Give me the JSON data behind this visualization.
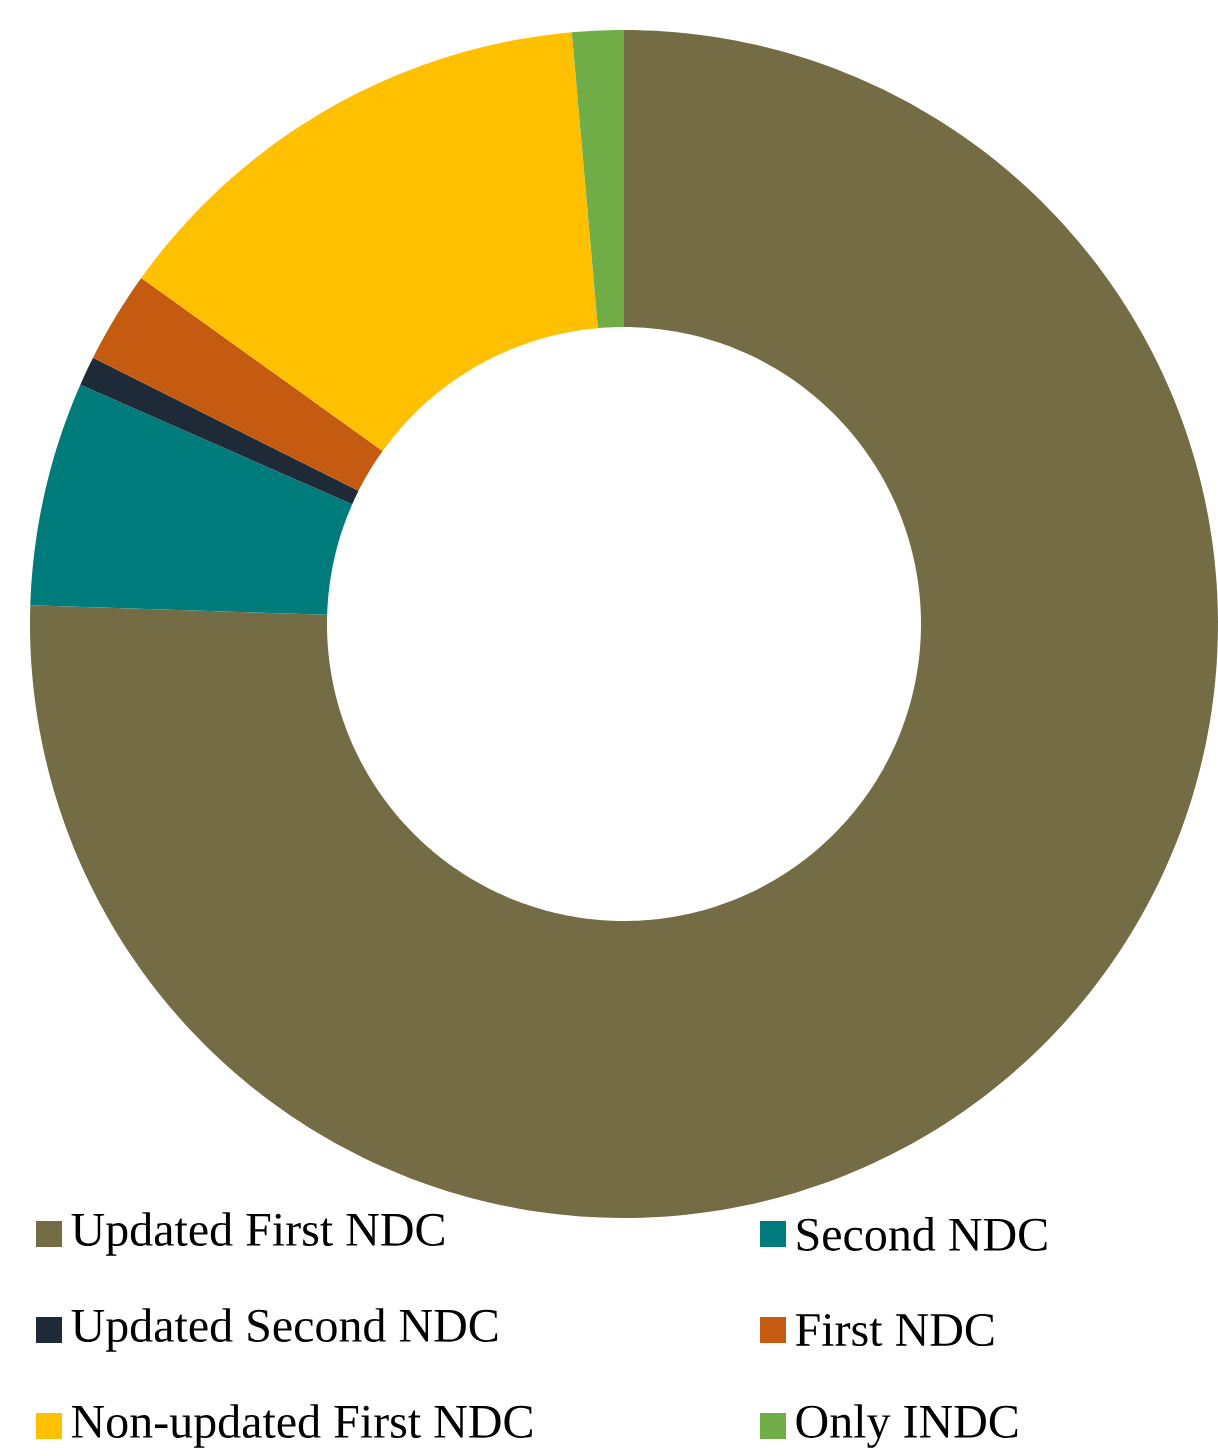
{
  "chart_data": {
    "type": "donut",
    "categories": [
      "Updated First NDC",
      "Second NDC",
      "Updated Second NDC",
      "First NDC",
      "Non-updated First NDC",
      "Only INDC"
    ],
    "values": [
      75.5,
      6.1,
      0.8,
      2.5,
      13.7,
      1.4
    ],
    "colors": [
      "#736c45",
      "#007b7b",
      "#1f2a38",
      "#c55a11",
      "#ffc000",
      "#70ad47"
    ],
    "legend": "bottom"
  }
}
